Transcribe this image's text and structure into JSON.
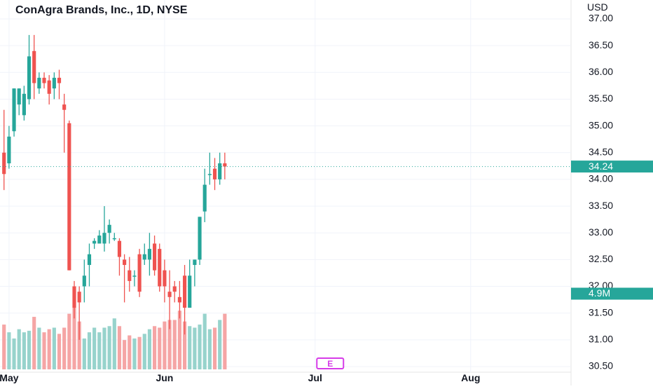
{
  "chart_data": {
    "type": "candlestick",
    "title": "ConAgra Brands, Inc., 1D, NYSE",
    "currency": "USD",
    "y_ticks": [
      "37.00",
      "36.50",
      "36.00",
      "35.50",
      "35.00",
      "34.50",
      "34.00",
      "33.50",
      "33.00",
      "32.50",
      "32.00",
      "31.50",
      "31.00",
      "30.50"
    ],
    "ylim": [
      30.4,
      37.2
    ],
    "x_labels": [
      {
        "label": "May",
        "day": 0
      },
      {
        "label": "Jun",
        "day": 31
      },
      {
        "label": "Jul",
        "day": 61
      },
      {
        "label": "Aug",
        "day": 92
      }
    ],
    "xlim_days": [
      -1.8,
      112
    ],
    "current_price_label": "34.24",
    "current_price": 34.24,
    "volume_label": "4.9M",
    "volume_label_value": 4.9,
    "volume_max": 4.9,
    "volume_unit": "M",
    "earnings_marker": {
      "label": "E",
      "day": 64
    },
    "colors": {
      "up": "#26a69a",
      "down": "#ef5350",
      "up_volume": "#97d3cc",
      "down_volume": "#f5a5a5",
      "earnings": "#d63ce8"
    },
    "candles": [
      {
        "day": -1,
        "o": 34.5,
        "h": 35.3,
        "l": 33.8,
        "c": 34.1,
        "v": 2.9
      },
      {
        "day": 0,
        "o": 34.3,
        "h": 35.0,
        "l": 34.2,
        "c": 34.8,
        "v": 2.4
      },
      {
        "day": 1,
        "o": 34.9,
        "h": 35.7,
        "l": 34.8,
        "c": 35.7,
        "v": 2.0
      },
      {
        "day": 2,
        "o": 35.4,
        "h": 35.7,
        "l": 35.2,
        "c": 35.7,
        "v": 2.6
      },
      {
        "day": 3,
        "o": 35.2,
        "h": 35.75,
        "l": 35.1,
        "c": 35.6,
        "v": 2.4
      },
      {
        "day": 4,
        "o": 35.5,
        "h": 36.7,
        "l": 35.4,
        "c": 36.3,
        "v": 2.5
      },
      {
        "day": 5,
        "o": 36.4,
        "h": 36.7,
        "l": 35.5,
        "c": 35.8,
        "v": 3.4
      },
      {
        "day": 6,
        "o": 35.7,
        "h": 36.0,
        "l": 35.6,
        "c": 35.9,
        "v": 2.7
      },
      {
        "day": 7,
        "o": 35.9,
        "h": 36.0,
        "l": 35.7,
        "c": 35.8,
        "v": 2.4
      },
      {
        "day": 8,
        "o": 35.85,
        "h": 35.95,
        "l": 35.4,
        "c": 35.6,
        "v": 2.6
      },
      {
        "day": 9,
        "o": 35.7,
        "h": 36.0,
        "l": 35.5,
        "c": 35.9,
        "v": 2.7
      },
      {
        "day": 10,
        "o": 35.9,
        "h": 36.05,
        "l": 35.5,
        "c": 35.8,
        "v": 2.3
      },
      {
        "day": 11,
        "o": 35.4,
        "h": 35.6,
        "l": 34.5,
        "c": 35.3,
        "v": 2.7
      },
      {
        "day": 12,
        "o": 35.05,
        "h": 35.1,
        "l": 32.3,
        "c": 32.3,
        "v": 3.6
      },
      {
        "day": 13,
        "o": 32.0,
        "h": 32.1,
        "l": 31.4,
        "c": 31.6,
        "v": 4.0
      },
      {
        "day": 14,
        "o": 31.9,
        "h": 32.0,
        "l": 31.0,
        "c": 31.7,
        "v": 3.1
      },
      {
        "day": 15,
        "o": 32.0,
        "h": 32.5,
        "l": 31.7,
        "c": 32.2,
        "v": 2.0
      },
      {
        "day": 16,
        "o": 32.4,
        "h": 32.8,
        "l": 32.0,
        "c": 32.6,
        "v": 2.4
      },
      {
        "day": 17,
        "o": 32.8,
        "h": 32.9,
        "l": 32.7,
        "c": 32.85,
        "v": 2.7
      },
      {
        "day": 18,
        "o": 32.8,
        "h": 33.05,
        "l": 32.8,
        "c": 32.95,
        "v": 2.4
      },
      {
        "day": 19,
        "o": 32.8,
        "h": 33.5,
        "l": 32.65,
        "c": 33.0,
        "v": 2.7
      },
      {
        "day": 20,
        "o": 33.0,
        "h": 33.25,
        "l": 32.8,
        "c": 33.15,
        "v": 2.8
      },
      {
        "day": 21,
        "o": 32.9,
        "h": 33.0,
        "l": 32.85,
        "c": 32.9,
        "v": 3.3
      },
      {
        "day": 22,
        "o": 32.85,
        "h": 32.9,
        "l": 32.2,
        "c": 32.55,
        "v": 2.8
      },
      {
        "day": 23,
        "o": 32.5,
        "h": 32.6,
        "l": 31.7,
        "c": 32.4,
        "v": 1.9
      },
      {
        "day": 24,
        "o": 32.3,
        "h": 32.55,
        "l": 31.9,
        "c": 32.1,
        "v": 2.2
      },
      {
        "day": 25,
        "o": 32.2,
        "h": 32.3,
        "l": 32.0,
        "c": 32.2,
        "v": 2.0
      },
      {
        "day": 26,
        "o": 32.6,
        "h": 32.7,
        "l": 31.8,
        "c": 31.9,
        "v": 2.1
      },
      {
        "day": 27,
        "o": 32.5,
        "h": 32.8,
        "l": 32.4,
        "c": 32.6,
        "v": 2.3
      },
      {
        "day": 28,
        "o": 32.5,
        "h": 33.0,
        "l": 32.2,
        "c": 32.7,
        "v": 2.6
      },
      {
        "day": 29,
        "o": 32.8,
        "h": 32.95,
        "l": 32.2,
        "c": 32.3,
        "v": 2.8
      },
      {
        "day": 30,
        "o": 32.7,
        "h": 32.8,
        "l": 31.9,
        "c": 32.0,
        "v": 2.7
      },
      {
        "day": 31,
        "o": 32.3,
        "h": 32.5,
        "l": 31.7,
        "c": 32.0,
        "v": 3.1
      },
      {
        "day": 32,
        "o": 31.9,
        "h": 32.3,
        "l": 31.2,
        "c": 31.8,
        "v": 3.2
      },
      {
        "day": 33,
        "o": 32.0,
        "h": 32.1,
        "l": 31.7,
        "c": 31.9,
        "v": 3.2
      },
      {
        "day": 34,
        "o": 31.8,
        "h": 32.1,
        "l": 31.4,
        "c": 31.7,
        "v": 3.8
      },
      {
        "day": 35,
        "o": 32.2,
        "h": 32.4,
        "l": 31.1,
        "c": 31.6,
        "v": 3.1
      },
      {
        "day": 36,
        "o": 31.6,
        "h": 32.5,
        "l": 31.6,
        "c": 32.2,
        "v": 2.8
      },
      {
        "day": 37,
        "o": 32.4,
        "h": 32.5,
        "l": 32.0,
        "c": 32.5,
        "v": 2.7
      },
      {
        "day": 38,
        "o": 32.5,
        "h": 33.3,
        "l": 32.4,
        "c": 33.3,
        "v": 2.9
      },
      {
        "day": 39,
        "o": 33.4,
        "h": 34.2,
        "l": 33.2,
        "c": 33.9,
        "v": 3.6
      },
      {
        "day": 40,
        "o": 34.1,
        "h": 34.5,
        "l": 33.9,
        "c": 34.1,
        "v": 2.6
      },
      {
        "day": 41,
        "o": 34.2,
        "h": 34.4,
        "l": 33.8,
        "c": 34.0,
        "v": 2.7
      },
      {
        "day": 42,
        "o": 34.0,
        "h": 34.5,
        "l": 33.9,
        "c": 34.3,
        "v": 3.2
      },
      {
        "day": 43,
        "o": 34.3,
        "h": 34.5,
        "l": 34.0,
        "c": 34.24,
        "v": 3.6
      }
    ]
  }
}
